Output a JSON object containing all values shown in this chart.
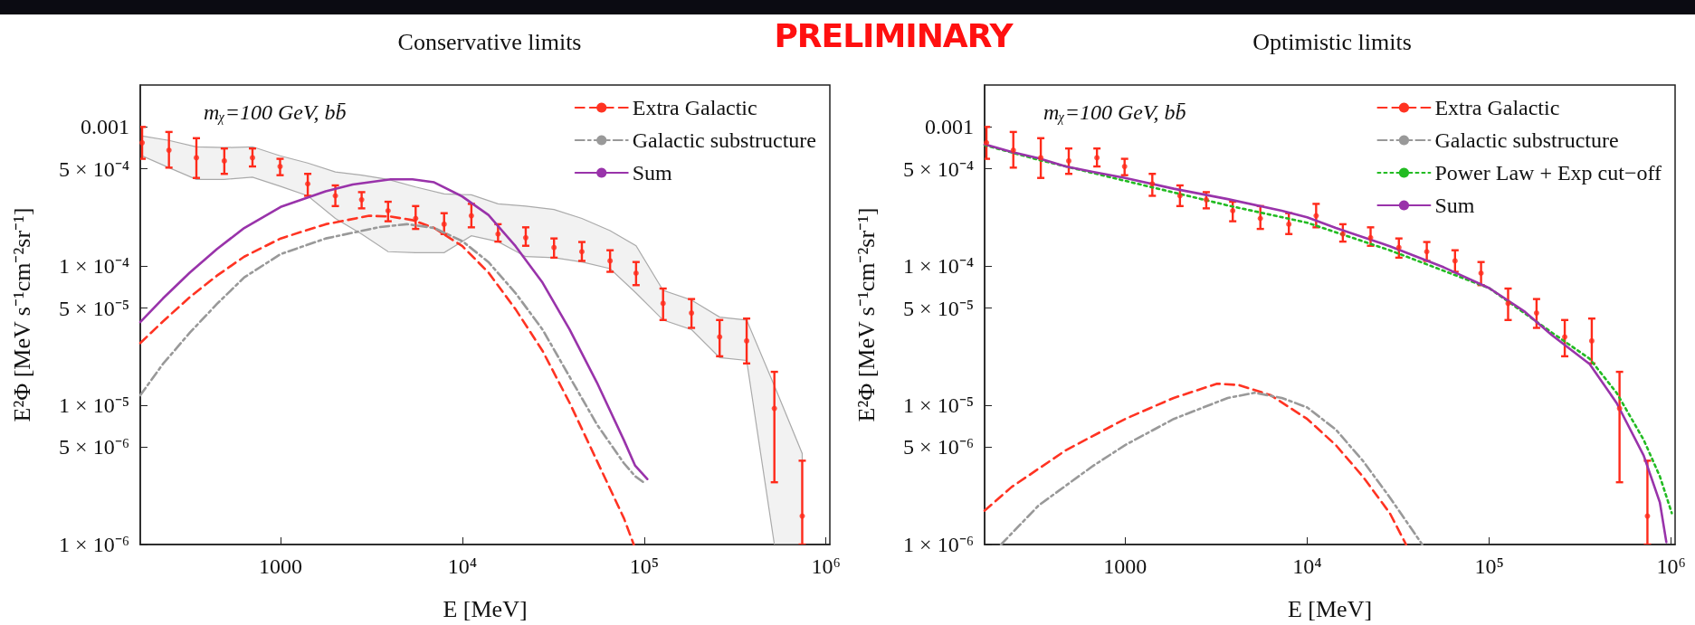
{
  "chart_data": [
    {
      "type": "line",
      "title": "Conservative limits",
      "xlabel": "E [MeV]",
      "ylabel": "E²Φ [MeV s⁻¹cm⁻²sr⁻¹]",
      "annotations": [
        "mᵪ=100 GeV, bb̄",
        "PRELIMINARY"
      ],
      "log": "xy",
      "legend": "top right",
      "xlim": [
        169,
        1050000
      ],
      "xticks": [
        1000,
        {
          "value": 10000,
          "label": "10⁴"
        },
        {
          "value": 100000,
          "label": "10⁵"
        },
        {
          "value": 1000000,
          "label": "10⁶"
        }
      ],
      "ylim": [
        1e-06,
        0.002
      ],
      "yticks": [
        {
          "value": 0.001,
          "label": "0.001"
        },
        {
          "value": 0.0005,
          "label": "5 × 10⁻⁴"
        },
        {
          "value": 0.0001,
          "label": "1 × 10⁻⁴"
        },
        {
          "value": 5e-05,
          "label": "5 × 10⁻⁵"
        },
        {
          "value": 1e-05,
          "label": "1 × 10⁻⁵"
        },
        {
          "value": 5e-06,
          "label": "5 × 10⁻⁶"
        },
        {
          "value": 1e-06,
          "label": "1 × 10⁻⁶"
        }
      ],
      "series": [
        {
          "color": "#aaaaaa",
          "x": [
            173,
            243,
            344,
            490,
            700,
            993,
            1410,
            2000,
            2790,
            3900,
            5530,
            7930,
            11200,
            15700,
            22300,
            31900,
            45400,
            64900,
            90200,
            127000,
            182000,
            260000,
            366000,
            520000,
            740000
          ],
          "values": [
            null,
            null,
            null,
            null,
            null,
            null,
            null,
            null,
            null,
            null,
            null,
            null,
            null,
            null,
            null,
            null,
            null,
            null,
            null,
            null,
            null,
            null,
            null,
            null,
            null
          ],
          "upper": [
            0.00086,
            0.0008,
            0.00072,
            0.00071,
            0.00072,
            0.00062,
            0.00055,
            0.000475,
            0.00045,
            0.00042,
            0.00037,
            0.00033,
            0.000325,
            0.00028,
            0.00027,
            0.000255,
            0.00022,
            0.00018,
            0.00014,
            6.7e-05,
            5.7e-05,
            4.3e-05,
            4.1e-05,
            1.38e-05,
            4.5e-06
          ],
          "lower": [
            0.00062,
            0.00051,
            0.00042,
            0.00042,
            0.000435,
            0.000375,
            0.00032,
            0.00022,
            0.00017,
            0.000127,
            0.000125,
            0.000125,
            0.000165,
            0.00015,
            0.000117,
            0.000115,
            0.000107,
            9.6e-05,
            6.4e-05,
            4.1e-05,
            3.5e-05,
            2.2e-05,
            2.1e-05,
            1e-06,
            1e-06
          ]
        },
        {
          "type": "scatter",
          "color": "#ff2a1a",
          "marker": "circle",
          "x": [
            173,
            243,
            344,
            490,
            700,
            993,
            1410,
            2000,
            2790,
            3900,
            5530,
            7930,
            11200,
            15700,
            22300,
            31900,
            45400,
            64900,
            90200,
            127000,
            182000,
            260000,
            366000,
            520000,
            740000
          ],
          "values": [
            0.00077,
            0.00068,
            0.0006,
            0.00057,
            0.0006,
            0.00052,
            0.00039,
            0.00032,
            0.0003,
            0.00025,
            0.00022,
            0.0002,
            0.00023,
            0.00017,
            0.00016,
            0.000136,
            0.000127,
            0.000109,
            8.9e-05,
            5.4e-05,
            4.6e-05,
            3.1e-05,
            2.9e-05,
            9.5e-06,
            1.6e-06
          ],
          "errors": [
            [
              0.00059,
              0.001
            ],
            [
              0.00051,
              0.00092
            ],
            [
              0.00043,
              0.00083
            ],
            [
              0.00046,
              0.0007
            ],
            [
              0.00052,
              0.0007
            ],
            [
              0.00045,
              0.00059
            ],
            [
              0.00032,
              0.00046
            ],
            [
              0.00027,
              0.00038
            ],
            [
              0.00026,
              0.00034
            ],
            [
              0.00021,
              0.00029
            ],
            [
              0.000185,
              0.00027
            ],
            [
              0.00017,
              0.00024
            ],
            [
              0.00019,
              0.00028
            ],
            [
              0.00015,
              0.0002
            ],
            [
              0.00014,
              0.00019
            ],
            [
              0.000115,
              0.000158
            ],
            [
              0.000109,
              0.000149
            ],
            [
              9.1e-05,
              0.00013
            ],
            [
              7.3e-05,
              0.000107
            ],
            [
              4.1e-05,
              6.9e-05
            ],
            [
              3.6e-05,
              5.8e-05
            ],
            [
              2.25e-05,
              4.1e-05
            ],
            [
              2e-05,
              4.2e-05
            ],
            [
              2.8e-06,
              1.74e-05
            ],
            [
              1e-06,
              4e-06
            ]
          ]
        },
        {
          "name": "Extra Galactic",
          "color": "#ff3322",
          "line_style": "dashed",
          "x": [
            169,
            225,
            317,
            447,
            631,
            1000,
            1770,
            3070,
            4030,
            5310,
            6990,
            10000,
            13900,
            19600,
            27600,
            38900,
            54900,
            77400,
            87600
          ],
          "values": [
            2.8e-05,
            4e-05,
            6e-05,
            8.55e-05,
            0.000117,
            0.000158,
            0.0002,
            0.00023,
            0.000227,
            0.000214,
            0.000188,
            0.000139,
            9e-05,
            4.9e-05,
            2.46e-05,
            1.04e-05,
            4e-06,
            1.54e-06,
            1e-06
          ]
        },
        {
          "name": "Galactic substructure",
          "color": "#999999",
          "line_style": "dashdot",
          "x": [
            169,
            225,
            317,
            447,
            631,
            1000,
            1770,
            3520,
            4960,
            6990,
            10000,
            13900,
            19600,
            27600,
            38900,
            54900,
            77400,
            89000,
            101000
          ],
          "values": [
            1.18e-05,
            1.98e-05,
            3.33e-05,
            5.36e-05,
            8.3e-05,
            0.000122,
            0.000158,
            0.000191,
            0.0002,
            0.000188,
            0.000151,
            0.000107,
            6.4e-05,
            3.5e-05,
            1.6e-05,
            7.3e-06,
            3.83e-06,
            3.1e-06,
            2.75e-06
          ]
        },
        {
          "name": "Sum",
          "color": "#9933aa",
          "line_style": "solid",
          "x": [
            169,
            225,
            317,
            447,
            631,
            1000,
            1770,
            2490,
            4030,
            4960,
            5310,
            6990,
            10000,
            13900,
            19600,
            27600,
            38900,
            54900,
            77400,
            89000,
            104000
          ],
          "values": [
            3.96e-05,
            5.85e-05,
            9e-05,
            0.000133,
            0.000188,
            0.000266,
            0.000345,
            0.000386,
            0.00042,
            0.00042,
            0.00042,
            0.0004,
            0.000316,
            0.000233,
            0.000139,
            7.6e-05,
            3.5e-05,
            1.46e-05,
            5.6e-06,
            3.7e-06,
            2.95e-06
          ]
        }
      ]
    },
    {
      "type": "line",
      "title": "Optimistic limits",
      "xlabel": "E [MeV]",
      "ylabel": "E²Φ [MeV s⁻¹cm⁻²sr⁻¹]",
      "annotations": [
        "mᵪ=100 GeV, bb̄"
      ],
      "log": "xy",
      "legend": "top right",
      "xlim": [
        169,
        1050000
      ],
      "xticks": [
        1000,
        {
          "value": 10000,
          "label": "10⁴"
        },
        {
          "value": 100000,
          "label": "10⁵"
        },
        {
          "value": 1000000,
          "label": "10⁶"
        }
      ],
      "ylim": [
        1e-06,
        0.002
      ],
      "yticks": [
        {
          "value": 0.001,
          "label": "0.001"
        },
        {
          "value": 0.0005,
          "label": "5 × 10⁻⁴"
        },
        {
          "value": 0.0001,
          "label": "1 × 10⁻⁴"
        },
        {
          "value": 5e-05,
          "label": "5 × 10⁻⁵"
        },
        {
          "value": 1e-05,
          "label": "1 × 10⁻⁵"
        },
        {
          "value": 5e-06,
          "label": "5 × 10⁻⁶"
        },
        {
          "value": 1e-06,
          "label": "1 × 10⁻⁶"
        }
      ],
      "series": [
        {
          "type": "scatter",
          "color": "#ff2a1a",
          "marker": "circle",
          "x": [
            173,
            243,
            344,
            490,
            700,
            993,
            1410,
            2000,
            2790,
            3900,
            5530,
            7930,
            11200,
            15700,
            22300,
            31900,
            45400,
            64900,
            90200,
            127000,
            182000,
            260000,
            366000,
            520000,
            740000
          ],
          "values": [
            0.00077,
            0.00068,
            0.0006,
            0.00057,
            0.0006,
            0.00052,
            0.00039,
            0.00032,
            0.0003,
            0.00025,
            0.00022,
            0.0002,
            0.00023,
            0.00017,
            0.00016,
            0.000136,
            0.000127,
            0.000109,
            8.9e-05,
            5.4e-05,
            4.6e-05,
            3.1e-05,
            2.9e-05,
            9.5e-06,
            1.6e-06
          ],
          "errors": [
            [
              0.00059,
              0.001
            ],
            [
              0.00051,
              0.00092
            ],
            [
              0.00043,
              0.00083
            ],
            [
              0.00046,
              0.0007
            ],
            [
              0.00052,
              0.0007
            ],
            [
              0.00045,
              0.00059
            ],
            [
              0.00032,
              0.00046
            ],
            [
              0.00027,
              0.00038
            ],
            [
              0.00026,
              0.00034
            ],
            [
              0.00021,
              0.00029
            ],
            [
              0.000185,
              0.00027
            ],
            [
              0.00017,
              0.00024
            ],
            [
              0.00019,
              0.00028
            ],
            [
              0.00015,
              0.0002
            ],
            [
              0.00014,
              0.00019
            ],
            [
              0.000115,
              0.000158
            ],
            [
              0.000109,
              0.000149
            ],
            [
              9.1e-05,
              0.00013
            ],
            [
              7.3e-05,
              0.000107
            ],
            [
              4.1e-05,
              6.9e-05
            ],
            [
              3.6e-05,
              5.8e-05
            ],
            [
              2.25e-05,
              4.1e-05
            ],
            [
              2e-05,
              4.2e-05
            ],
            [
              2.8e-06,
              1.74e-05
            ],
            [
              1e-06,
              4e-06
            ]
          ]
        },
        {
          "name": "Extra Galactic",
          "color": "#ff3322",
          "line_style": "dashed",
          "x": [
            169,
            238,
            472,
            1000,
            1849,
            3195,
            4198,
            6327,
            10000,
            14360,
            20210,
            28440,
            34920
          ],
          "values": [
            1.75e-06,
            2.59e-06,
            4.75e-06,
            7.98e-06,
            1.13e-05,
            1.43e-05,
            1.4e-05,
            1.18e-05,
            7.98e-06,
            5.18e-06,
            3.08e-06,
            1.68e-06,
            1e-06
          ]
        },
        {
          "name": "Galactic substructure",
          "color": "#999999",
          "line_style": "dashdot",
          "x": [
            208,
            335,
            664,
            1000,
            1849,
            3662,
            5155,
            7255,
            10000,
            14360,
            20210,
            28440,
            42870
          ],
          "values": [
            1e-06,
            1.91e-06,
            3.66e-06,
            5.18e-06,
            7.98e-06,
            1.13e-05,
            1.23e-05,
            1.13e-05,
            9.66e-06,
            6.7e-06,
            4e-06,
            2.18e-06,
            1e-06
          ]
        },
        {
          "name": "Power Law + Exp cut−off",
          "color": "#22bb22",
          "line_style": "dotted",
          "x": [
            169,
            335,
            1000,
            3662,
            10000,
            28440,
            100000,
            220900,
            356300,
            501000,
            705700,
            866500,
            1007000
          ],
          "values": [
            0.00074,
            0.00058,
            0.00041,
            0.000273,
            0.000205,
            0.00013,
            6.95e-05,
            3.33e-05,
            2.16e-05,
            1.23e-05,
            5.65e-06,
            3.08e-06,
            1.68e-06
          ]
        },
        {
          "name": "Sum",
          "color": "#9933aa",
          "line_style": "solid",
          "x": [
            169,
            238,
            335,
            472,
            664,
            1000,
            1849,
            3662,
            7255,
            10000,
            14360,
            28440,
            56330,
            100000,
            157000,
            220900,
            356300,
            501000,
            705700,
            866500,
            940000
          ],
          "values": [
            0.00075,
            0.00066,
            0.000595,
            0.00052,
            0.000475,
            0.00043,
            0.00036,
            0.000303,
            0.00025,
            0.000224,
            0.000188,
            0.000139,
            9.8e-05,
            6.95e-05,
            4.7e-05,
            3.19e-05,
            1.98e-05,
            1.04e-05,
            4.36e-06,
            2e-06,
            1.04e-06
          ]
        }
      ]
    }
  ]
}
